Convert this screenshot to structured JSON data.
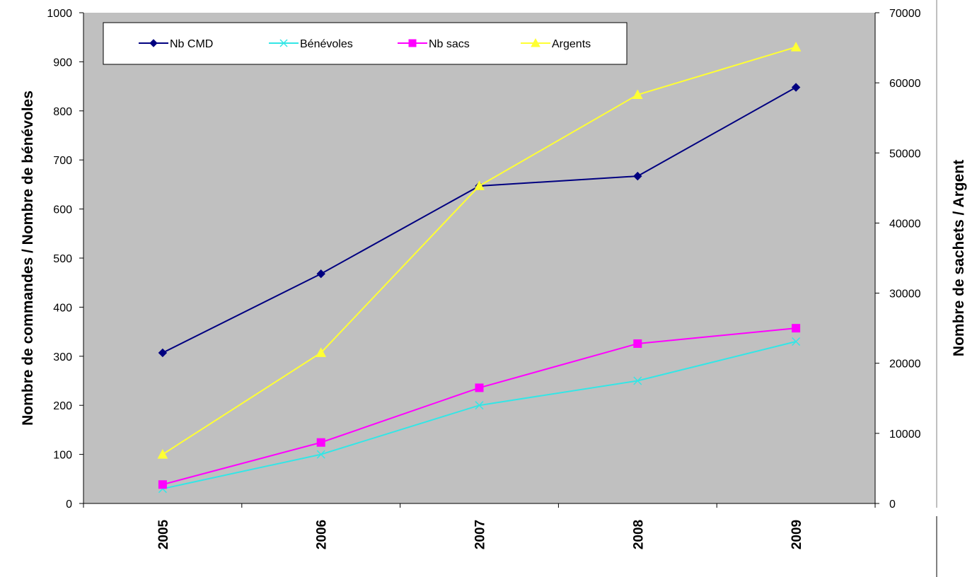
{
  "chart_data": {
    "type": "line",
    "categories": [
      "2005",
      "2006",
      "2007",
      "2008",
      "2009"
    ],
    "ylabel": "Nombre de commandes / Nombre de bénévoles",
    "y2label": "Nombre de sachets / Argent",
    "ylim": [
      0,
      1000
    ],
    "y2lim": [
      0,
      70000
    ],
    "yticks": [
      "0",
      "100",
      "200",
      "300",
      "400",
      "500",
      "600",
      "700",
      "800",
      "900",
      "1000"
    ],
    "y2ticks": [
      "0",
      "10000",
      "20000",
      "30000",
      "40000",
      "50000",
      "60000",
      "70000"
    ],
    "grid": false,
    "plot_background": "#C0C0C0",
    "legend_position": "top",
    "series": [
      {
        "name": "Nb CMD",
        "axis": "left",
        "color": "#000080",
        "marker": "diamond",
        "values": [
          307,
          468,
          647,
          667,
          848
        ]
      },
      {
        "name": "Bénévoles",
        "axis": "left",
        "color": "#33E6E6",
        "marker": "x",
        "values": [
          30,
          100,
          200,
          250,
          330
        ]
      },
      {
        "name": "Nb sacs",
        "axis": "right",
        "color": "#FF00FF",
        "marker": "square",
        "values": [
          2700,
          8700,
          16500,
          22800,
          25000
        ]
      },
      {
        "name": "Argents",
        "axis": "right",
        "color": "#FFFF33",
        "marker": "triangle",
        "values": [
          7000,
          21500,
          45300,
          58300,
          65100
        ]
      }
    ]
  }
}
